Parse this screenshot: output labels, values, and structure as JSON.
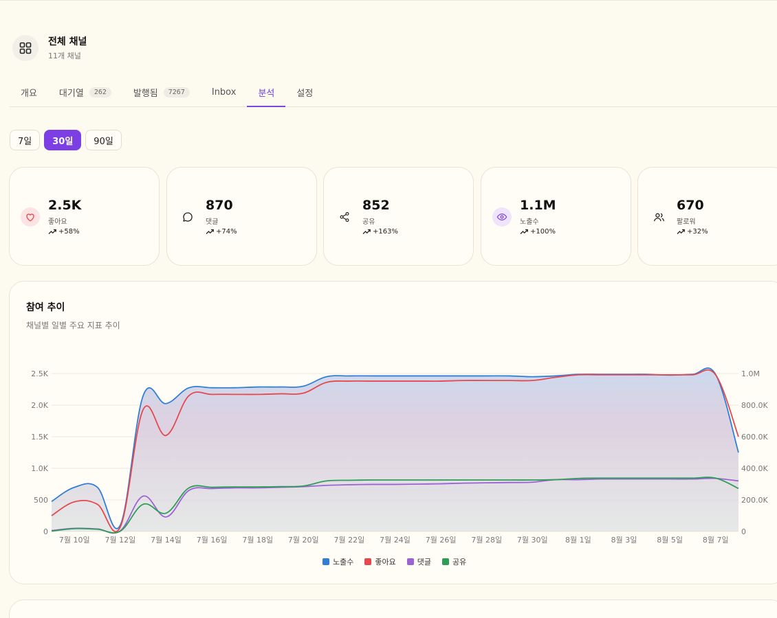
{
  "header": {
    "title": "전체 채널",
    "subtitle": "11개 채널",
    "icon": "grid-icon"
  },
  "tabs": [
    {
      "label": "개요",
      "count": null,
      "active": false
    },
    {
      "label": "대기열",
      "count": "262",
      "active": false
    },
    {
      "label": "발행됨",
      "count": "7267",
      "active": false
    },
    {
      "label": "Inbox",
      "count": null,
      "active": false
    },
    {
      "label": "분석",
      "count": null,
      "active": true
    },
    {
      "label": "설정",
      "count": null,
      "active": false
    }
  ],
  "periods": [
    {
      "label": "7일",
      "active": false
    },
    {
      "label": "30일",
      "active": true
    },
    {
      "label": "90일",
      "active": false
    }
  ],
  "stats": [
    {
      "value": "2.5K",
      "label": "좋아요",
      "change": "+58%",
      "icon": "heart-icon",
      "icon_bg": "#fde3e3",
      "icon_color": "#e5484d"
    },
    {
      "value": "870",
      "label": "댓글",
      "change": "+74%",
      "icon": "comment-icon",
      "icon_bg": "transparent",
      "icon_color": "#222222"
    },
    {
      "value": "852",
      "label": "공유",
      "change": "+163%",
      "icon": "share-icon",
      "icon_bg": "transparent",
      "icon_color": "#222222"
    },
    {
      "value": "1.1M",
      "label": "노출수",
      "change": "+100%",
      "icon": "eye-icon",
      "icon_bg": "#efe4fb",
      "icon_color": "#7b45e0"
    },
    {
      "value": "670",
      "label": "팔로워",
      "change": "+32%",
      "icon": "users-icon",
      "icon_bg": "transparent",
      "icon_color": "#222222"
    }
  ],
  "chart": {
    "title": "참여 추이",
    "subtitle": "채널별 일별 주요 지표 추이"
  },
  "chart_data": {
    "type": "line",
    "x_ticks": [
      "7월 10일",
      "7월 12일",
      "7월 14일",
      "7월 16일",
      "7월 18일",
      "7월 20일",
      "7월 22일",
      "7월 24일",
      "7월 26일",
      "7월 28일",
      "7월 30일",
      "8월 1일",
      "8월 3일",
      "8월 5일",
      "8월 7일"
    ],
    "y_left_ticks": [
      "0",
      "500",
      "1.0K",
      "1.5K",
      "2.0K",
      "2.5K"
    ],
    "y_right_ticks": [
      "0",
      "200.0K",
      "400.0K",
      "600.0K",
      "800.0K",
      "1.0M"
    ],
    "y_left_range": [
      0,
      2500
    ],
    "y_right_range": [
      0,
      1000000
    ],
    "x": [
      "7월 9일",
      "7월 10일",
      "7월 11일",
      "7월 12일",
      "7월 13일",
      "7월 14일",
      "7월 15일",
      "7월 16일",
      "7월 17일",
      "7월 18일",
      "7월 19일",
      "7월 20일",
      "7월 21일",
      "7월 22일",
      "7월 23일",
      "7월 24일",
      "7월 25일",
      "7월 26일",
      "7월 27일",
      "7월 28일",
      "7월 29일",
      "7월 30일",
      "7월 31일",
      "8월 1일",
      "8월 2일",
      "8월 3일",
      "8월 4일",
      "8월 5일",
      "8월 6일",
      "8월 7일",
      "8월 8일"
    ],
    "series": [
      {
        "name": "노출수",
        "axis": "right",
        "color": "#2f7fd6",
        "fill": true,
        "values": [
          190000,
          280000,
          280000,
          40000,
          860000,
          810000,
          910000,
          910000,
          910000,
          915000,
          915000,
          920000,
          980000,
          985000,
          985000,
          985000,
          985000,
          985000,
          985000,
          985000,
          985000,
          980000,
          985000,
          995000,
          995000,
          995000,
          995000,
          990000,
          995000,
          995000,
          500000
        ]
      },
      {
        "name": "좋아요",
        "axis": "left",
        "color": "#e5484d",
        "fill": false,
        "values": [
          250,
          470,
          430,
          70,
          1930,
          1520,
          2150,
          2170,
          2170,
          2170,
          2180,
          2190,
          2360,
          2380,
          2380,
          2380,
          2380,
          2380,
          2390,
          2390,
          2390,
          2390,
          2440,
          2480,
          2480,
          2480,
          2480,
          2480,
          2480,
          2480,
          1500
        ]
      },
      {
        "name": "댓글",
        "axis": "left",
        "color": "#9b63d6",
        "fill": false,
        "values": [
          15,
          50,
          40,
          10,
          560,
          230,
          650,
          680,
          690,
          690,
          700,
          710,
          730,
          740,
          745,
          745,
          750,
          755,
          765,
          770,
          775,
          780,
          820,
          820,
          830,
          830,
          830,
          830,
          830,
          840,
          800
        ]
      },
      {
        "name": "공유",
        "axis": "left",
        "color": "#2e9d57",
        "fill": false,
        "values": [
          5,
          45,
          35,
          5,
          430,
          290,
          690,
          700,
          705,
          705,
          710,
          720,
          800,
          810,
          815,
          815,
          815,
          815,
          815,
          815,
          815,
          815,
          820,
          840,
          845,
          845,
          845,
          845,
          845,
          845,
          680
        ]
      }
    ],
    "legend": "bottom-center",
    "grid": true
  },
  "colors": {
    "accent": "#7b3fe4",
    "background": "#fdfaf0",
    "card": "#fffdf6"
  }
}
